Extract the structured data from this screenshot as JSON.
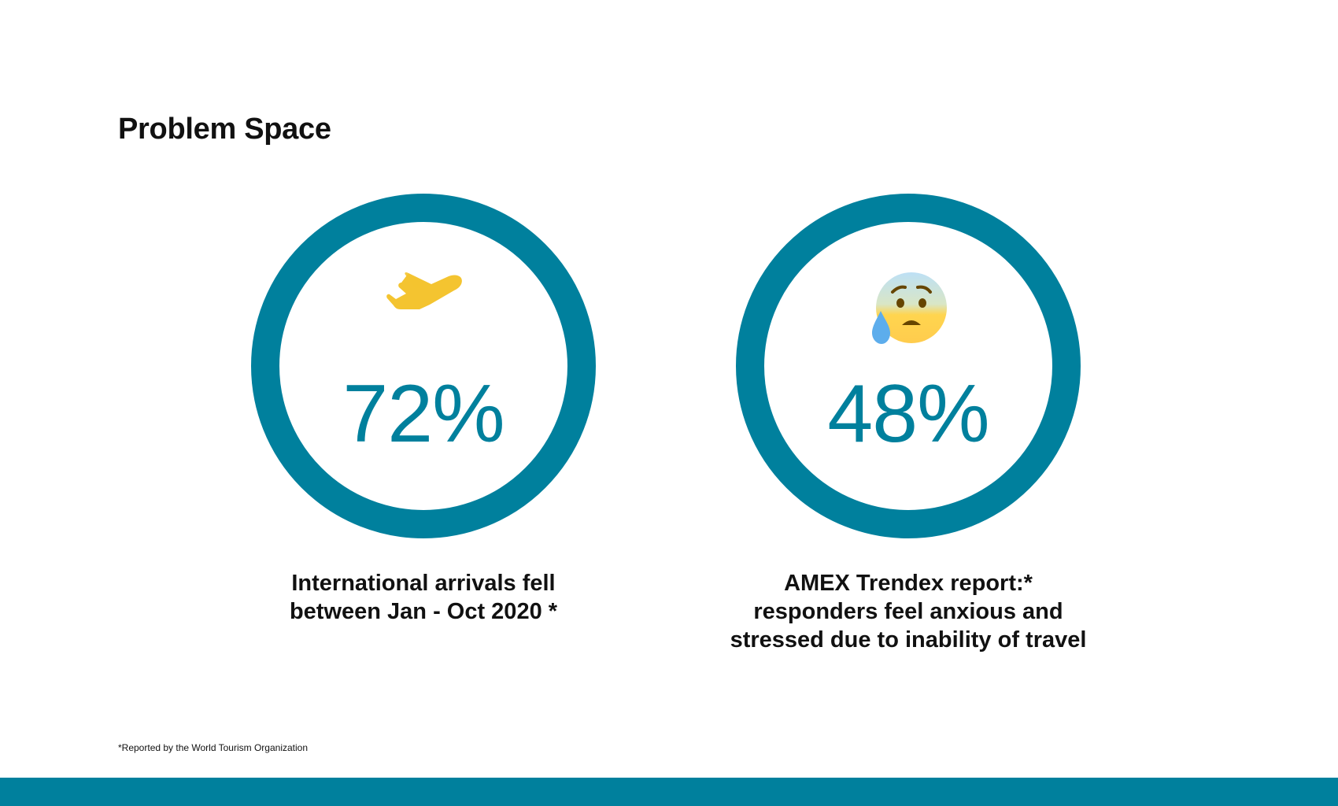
{
  "title": "Problem Space",
  "accent_color": "#00809d",
  "stats": [
    {
      "icon": "airplane-departure-icon",
      "percent": "72%",
      "percent_value": 72,
      "caption_lines": [
        "International arrivals fell",
        "between Jan - Oct 2020 *"
      ]
    },
    {
      "icon": "anxious-face-with-sweat-icon",
      "percent": "48%",
      "percent_value": 48,
      "caption_lines": [
        "AMEX Trendex report:*",
        "responders feel anxious and",
        "stressed due to inability of travel"
      ]
    }
  ],
  "footnote": "*Reported by the World Tourism Organization"
}
